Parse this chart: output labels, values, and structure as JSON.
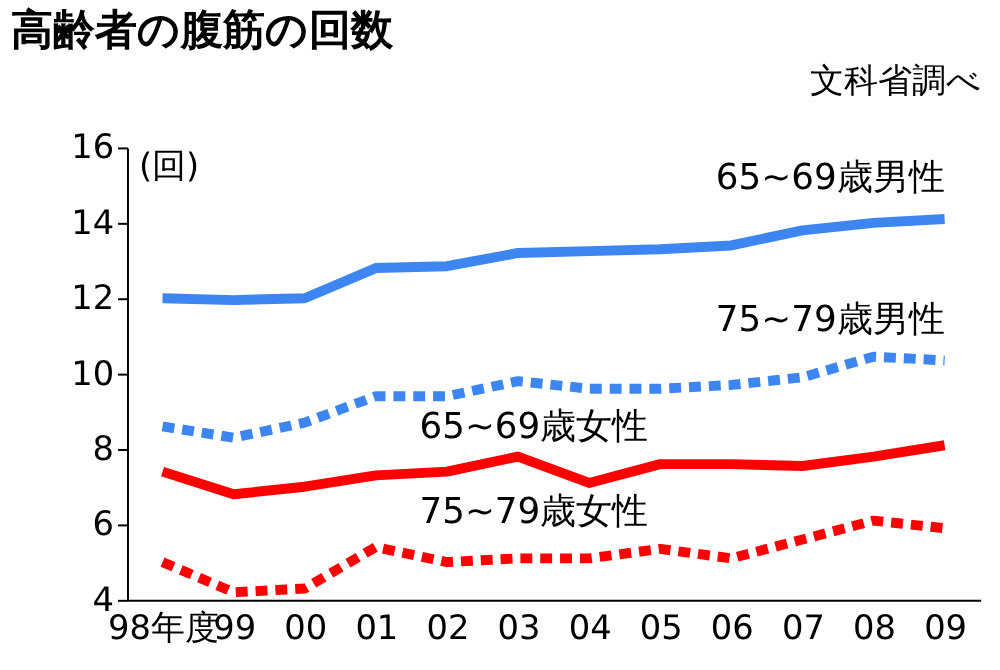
{
  "chart_data": {
    "type": "line",
    "title": "高齢者の腹筋の回数",
    "ylabel": "(回)",
    "annotations": [
      "文科省調べ"
    ],
    "categories": [
      "98年度",
      "99",
      "00",
      "01",
      "02",
      "03",
      "04",
      "05",
      "06",
      "07",
      "08",
      "09"
    ],
    "ylim": [
      4,
      16
    ],
    "yticks": [
      4,
      6,
      8,
      10,
      12,
      14,
      16
    ],
    "grid": false,
    "marker": "none",
    "series": [
      {
        "name": "65~69歳男性",
        "color": "#3d85f0",
        "line_style": "solid",
        "values": [
          12.0,
          11.95,
          12.0,
          12.8,
          12.85,
          13.2,
          13.25,
          13.3,
          13.4,
          13.8,
          14.0,
          14.1
        ]
      },
      {
        "name": "75~79歳男性",
        "color": "#3d85f0",
        "line_style": "dashed",
        "values": [
          8.6,
          8.3,
          8.7,
          9.4,
          9.4,
          9.8,
          9.6,
          9.6,
          9.7,
          9.9,
          10.45,
          10.35
        ]
      },
      {
        "name": "65~69歳女性",
        "color": "#ff0000",
        "line_style": "solid",
        "values": [
          7.4,
          6.8,
          7.0,
          7.3,
          7.4,
          7.8,
          7.1,
          7.6,
          7.6,
          7.55,
          7.8,
          8.1
        ]
      },
      {
        "name": "75~79歳女性",
        "color": "#ff0000",
        "line_style": "dashed",
        "values": [
          5.0,
          4.2,
          4.3,
          5.4,
          5.0,
          5.1,
          5.1,
          5.35,
          5.1,
          5.6,
          6.1,
          5.9
        ]
      }
    ]
  }
}
